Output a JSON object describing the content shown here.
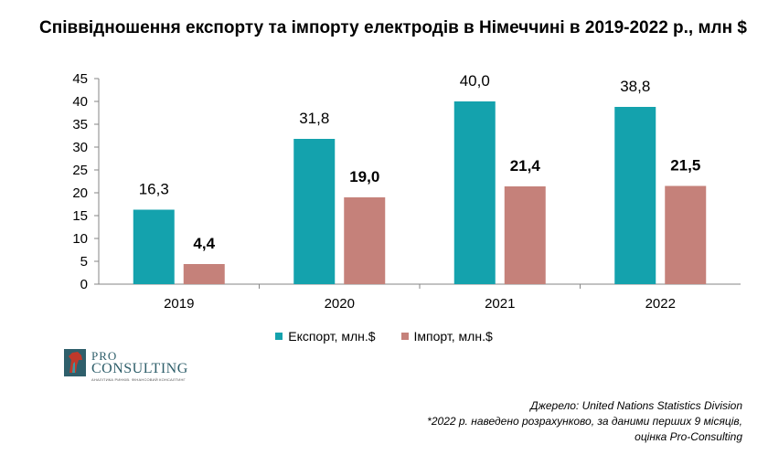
{
  "title": "Співвідношення експорту та імпорту електродів в Німеччині в 2019-2022 р., млн $",
  "colors": {
    "export": "#14a2ad",
    "import": "#c5817a",
    "axis": "#868686"
  },
  "chart_data": {
    "type": "bar",
    "title": "Співвідношення експорту та імпорту електродів в Німеччині в 2019-2022 р., млн $",
    "categories": [
      "2019",
      "2020",
      "2021",
      "2022"
    ],
    "series": [
      {
        "name": "Експорт, млн.$",
        "values": [
          16.3,
          31.8,
          40.0,
          38.8
        ],
        "labels": [
          "16,3",
          "31,8",
          "40,0",
          "38,8"
        ]
      },
      {
        "name": "Імпорт, млн.$",
        "values": [
          4.4,
          19.0,
          21.4,
          21.5
        ],
        "labels": [
          "4,4",
          "19,0",
          "21,4",
          "21,5"
        ]
      }
    ],
    "ylim": [
      0,
      45
    ],
    "yticks": [
      0,
      5,
      10,
      15,
      20,
      25,
      30,
      35,
      40,
      45
    ],
    "grid": false,
    "legend": "bottom"
  },
  "logo": {
    "pro": "PRO",
    "consulting": "CONSULTING",
    "tagline": "АНАЛІТИКА РИНКІВ. ФІНАНСОВИЙ КОНСАЛТИНГ"
  },
  "source": {
    "line1": "Джерело: United Nations Statistics Division",
    "line2": "*2022 р. наведено розрахунково, за даними перших 9 місяців,",
    "line3": "оцінка Pro-Consulting"
  }
}
